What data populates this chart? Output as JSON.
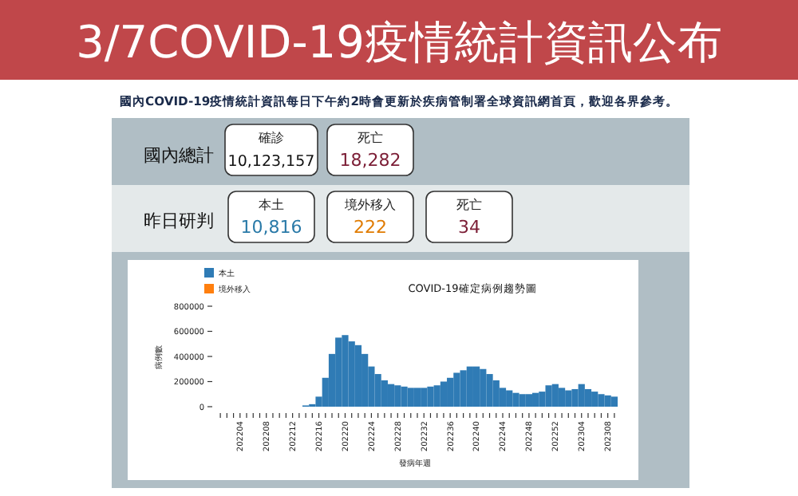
{
  "chart_data": [
    {
      "type": "other",
      "title": "3/7COVID-19疫情統計資訊公布",
      "subtitle": "國內COVID-19疫情統計資訊每日下午約2時會更新於疾病管制署全球資訊網首頁，歡迎各界參考。",
      "annotations": [
        "國內總計",
        "確診",
        "10,123,157",
        "死亡",
        "18,282",
        "昨日研判",
        "本土",
        "10,816",
        "境外移入",
        "222",
        "死亡",
        "34"
      ]
    },
    {
      "type": "bar",
      "title": "COVID-19確定病例趨勢圖",
      "xlabel": "發病年週",
      "ylabel": "病例數",
      "legend": "top left",
      "ylim": [
        0,
        800000
      ],
      "yticks": [
        0,
        200000,
        400000,
        600000,
        800000
      ],
      "categories": [
        null,
        null,
        null,
        "202204",
        null,
        null,
        null,
        "202208",
        null,
        null,
        null,
        "202212",
        null,
        null,
        null,
        "202216",
        null,
        null,
        null,
        "202220",
        null,
        null,
        null,
        "202224",
        null,
        null,
        null,
        "202228",
        null,
        null,
        null,
        "202232",
        null,
        null,
        null,
        "202236",
        null,
        null,
        null,
        "202240",
        null,
        null,
        null,
        "202244",
        null,
        null,
        null,
        "202248",
        null,
        null,
        null,
        "202252",
        null,
        null,
        null,
        "202304",
        null,
        null,
        null,
        "202308",
        null
      ],
      "series": [
        {
          "name": "本土",
          "color": "#2f7bb5",
          "values": [
            0,
            0,
            0,
            0,
            0,
            0,
            0,
            0,
            0,
            0,
            0,
            0,
            0,
            10000,
            20000,
            80000,
            230000,
            420000,
            550000,
            570000,
            520000,
            490000,
            420000,
            320000,
            260000,
            210000,
            180000,
            170000,
            160000,
            150000,
            150000,
            150000,
            160000,
            170000,
            200000,
            230000,
            270000,
            290000,
            320000,
            320000,
            300000,
            260000,
            210000,
            150000,
            130000,
            110000,
            100000,
            100000,
            110000,
            120000,
            170000,
            180000,
            150000,
            130000,
            140000,
            180000,
            140000,
            120000,
            100000,
            90000,
            80000
          ]
        },
        {
          "name": "境外移入",
          "color": "#ff7f0e",
          "values": [
            null,
            null,
            null,
            null,
            null,
            null,
            null,
            null,
            null,
            null,
            null,
            null,
            null,
            null,
            null,
            null,
            null,
            null,
            null,
            null,
            null,
            null,
            null,
            null,
            null,
            null,
            null,
            null,
            null,
            null,
            null,
            null,
            null,
            null,
            null,
            null,
            null,
            null,
            null,
            null,
            null,
            null,
            null,
            null,
            null,
            null,
            null,
            null,
            null,
            null,
            null,
            null,
            null,
            null,
            null,
            null,
            null,
            null,
            null,
            null,
            null
          ]
        }
      ]
    }
  ]
}
